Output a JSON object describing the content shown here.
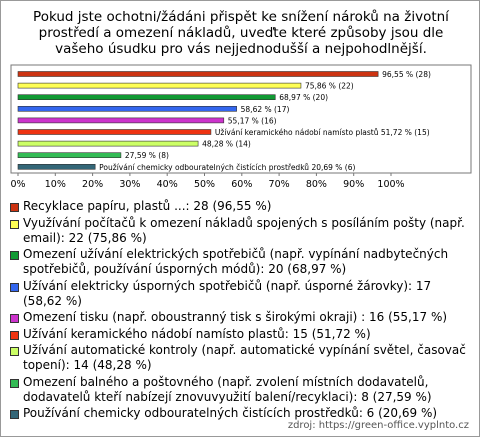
{
  "chart_data": {
    "type": "bar",
    "orientation": "horizontal",
    "title": "Pokud jste ochotni/žádáni přispět ke snížení nároků na životní prostředí a omezení nákladů, uveďte které způsoby jsou dle vašeho úsudku pro vás nejjednodušší a nejpohodlnější.",
    "categories": [
      "Recyklace papíru, plastů ...: 28 (96,55 %)",
      "Využívání počítačů k omezení nákladů spojených s posíláním pošty (např. email): 22 (75,86 %)",
      "Omezení užívání elektrických spotřebičů (např. vypínání nadbytečných spotřebičů, používání úsporných módů): 20 (68,97 %)",
      "Užívání elektricky úsporných spotřebičů (např. úsporné žárovky): 17 (58,62 %)",
      "Omezení tisku (např. oboustranný tisk s širokými okraji) : 16 (55,17 %)",
      "Užívání keramického nádobí namísto plastů: 15 (51,72 %)",
      "Užívání automatické kontroly (např. automatické vypínání světel, časovač topení): 14 (48,28 %)",
      "Omezení balného a poštovného (např. zvolení místních dodavatelů, dodavatelů kteří nabízejí znovuvyužití balení/recyklaci): 8 (27,59 %)",
      "Používání chemicky odbouratelných čistících prostředků: 6 (20,69 %)"
    ],
    "values": [
      96.55,
      75.86,
      68.97,
      58.62,
      55.17,
      51.72,
      48.28,
      27.59,
      20.69
    ],
    "value_labels": [
      "96,55 % (28)",
      "75,86 % (22)",
      "68,97 % (20)",
      "58,62 % (17)",
      "55,17 % (16)",
      "Užívání keramického nádobí namísto plastů 51,72 % (15)",
      "48,28 % (14)",
      "27,59 % (8)",
      "Používání chemicky odbouratelných čistících prostředků 20,69 % (6)"
    ],
    "colors": [
      "#cc3311",
      "#ffff55",
      "#119933",
      "#3366ee",
      "#cc33cc",
      "#ee3311",
      "#ccff66",
      "#33bb55",
      "#336677"
    ],
    "xlim": [
      0,
      100
    ],
    "xticks": [
      {
        "value": 0,
        "label": "0%"
      },
      {
        "value": 10,
        "label": "10%"
      },
      {
        "value": 20,
        "label": "20%"
      },
      {
        "value": 30,
        "label": "30%"
      },
      {
        "value": 40,
        "label": "40%"
      },
      {
        "value": 50,
        "label": "50%"
      },
      {
        "value": 60,
        "label": "60%"
      },
      {
        "value": 70,
        "label": "70%"
      },
      {
        "value": 80,
        "label": "80%"
      },
      {
        "value": 90,
        "label": "90%"
      },
      {
        "value": 100,
        "label": "100%"
      }
    ],
    "source": "zdroj: https://green-office.vyplnto.cz"
  }
}
